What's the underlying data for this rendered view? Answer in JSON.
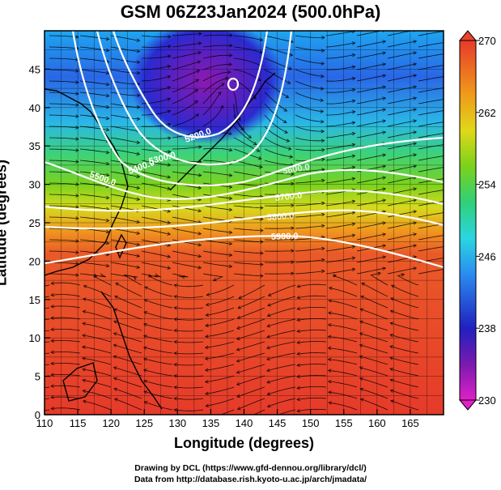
{
  "title": "GSM 06Z23Jan2024 (500.0hPa)",
  "xaxis": {
    "label": "Longitude (degrees)",
    "ticks": [
      "110",
      "115",
      "120",
      "125",
      "130",
      "135",
      "140",
      "145",
      "150",
      "155",
      "160",
      "165"
    ],
    "range": [
      110,
      170
    ]
  },
  "yaxis": {
    "label": "Latitude  (degrees)",
    "ticks": [
      "0",
      "5",
      "10",
      "15",
      "20",
      "25",
      "30",
      "35",
      "40",
      "45"
    ],
    "range": [
      0,
      50
    ]
  },
  "colorbar": {
    "ticks": [
      "230",
      "238",
      "246",
      "254",
      "262",
      "270"
    ],
    "range": [
      230,
      270
    ],
    "colors": [
      "#d61fd6",
      "#6a1aa6",
      "#1f1fbf",
      "#2a7cf0",
      "#2ad4e0",
      "#35d27a",
      "#6ad21a",
      "#cfe01a",
      "#f0b21a",
      "#f07a1a",
      "#e8452a",
      "#e03030"
    ]
  },
  "contours": [
    {
      "label": "5200.0"
    },
    {
      "label": "5300.0"
    },
    {
      "label": "5400.0"
    },
    {
      "label": "5500.0"
    },
    {
      "label": "5600.0"
    },
    {
      "label": "5700.0"
    },
    {
      "label": "5800.0"
    },
    {
      "label": "5900.0"
    }
  ],
  "credits": {
    "line1": "Drawing by DCL (https://www.gfd-dennou.org/library/dcl/)",
    "line2": "Data from http://database.rish.kyoto-u.ac.jp/arch/jmadata/"
  }
}
